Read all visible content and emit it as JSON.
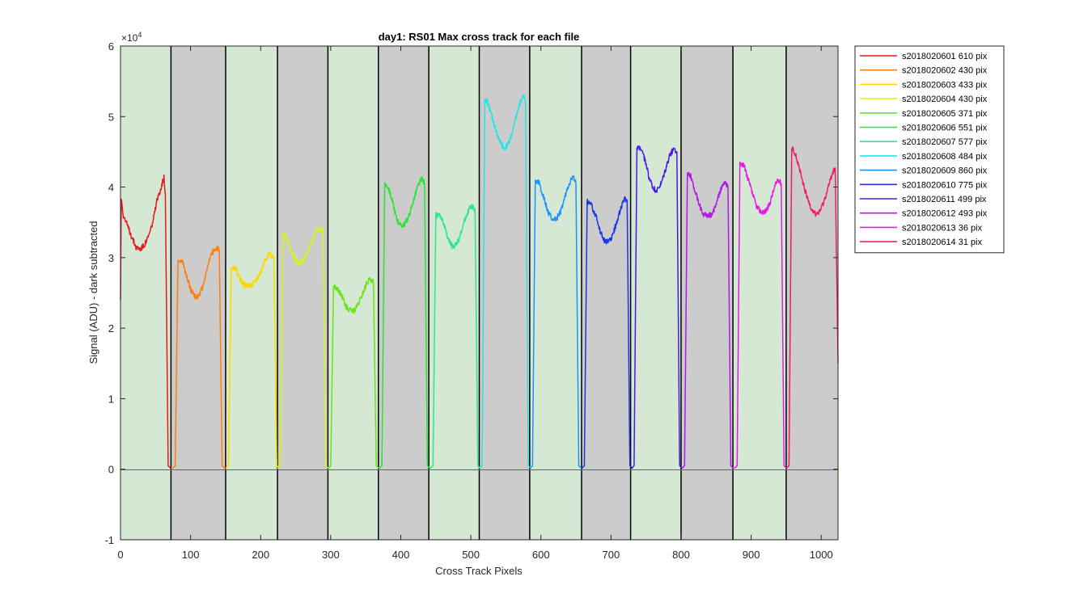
{
  "chart_data": {
    "type": "line",
    "title": "day1: RS01  Max cross track for each file",
    "xlabel": "Cross Track Pixels",
    "ylabel": "Signal (ADU) - dark subtracted",
    "exponent_label": "×10",
    "exponent_power": "4",
    "xlim": [
      0,
      1024
    ],
    "ylim": [
      -1,
      6
    ],
    "ylim_units": "x 10^4 ADU",
    "xticks": [
      "0",
      "100",
      "200",
      "300",
      "400",
      "500",
      "600",
      "700",
      "800",
      "900",
      "1000"
    ],
    "yticks": [
      "-1",
      "0",
      "1",
      "2",
      "3",
      "4",
      "5",
      "6"
    ],
    "legend_position": "outside-top-right",
    "background_bands": [
      {
        "start": 0,
        "end": 72,
        "shade": "green"
      },
      {
        "start": 72,
        "end": 150,
        "shade": "gray"
      },
      {
        "start": 150,
        "end": 224,
        "shade": "green"
      },
      {
        "start": 224,
        "end": 296,
        "shade": "gray"
      },
      {
        "start": 296,
        "end": 368,
        "shade": "green"
      },
      {
        "start": 368,
        "end": 440,
        "shade": "gray"
      },
      {
        "start": 440,
        "end": 512,
        "shade": "green"
      },
      {
        "start": 512,
        "end": 584,
        "shade": "gray"
      },
      {
        "start": 584,
        "end": 658,
        "shade": "green"
      },
      {
        "start": 658,
        "end": 728,
        "shade": "gray"
      },
      {
        "start": 728,
        "end": 800,
        "shade": "green"
      },
      {
        "start": 800,
        "end": 874,
        "shade": "gray"
      },
      {
        "start": 874,
        "end": 950,
        "shade": "green"
      },
      {
        "start": 950,
        "end": 1024,
        "shade": "gray"
      }
    ],
    "band_colors": {
      "green": "#d5e8d4",
      "gray": "#cccccc"
    },
    "series": [
      {
        "name": "s2018020601 610 pix",
        "color": "#e41a1c",
        "start": 0,
        "end": 64,
        "points": [
          [
            0,
            2.4
          ],
          [
            1,
            3.85
          ],
          [
            4,
            3.6
          ],
          [
            10,
            3.45
          ],
          [
            16,
            3.3
          ],
          [
            22,
            3.15
          ],
          [
            28,
            3.12
          ],
          [
            34,
            3.18
          ],
          [
            40,
            3.3
          ],
          [
            46,
            3.5
          ],
          [
            52,
            3.8
          ],
          [
            58,
            4.0
          ],
          [
            62,
            4.15
          ],
          [
            64,
            3.9
          ]
        ]
      },
      {
        "name": "s2018020602 430 pix",
        "color": "#ff7f0e",
        "start": 82,
        "end": 141,
        "points": [
          [
            82,
            2.95
          ],
          [
            88,
            2.95
          ],
          [
            94,
            2.75
          ],
          [
            100,
            2.55
          ],
          [
            106,
            2.45
          ],
          [
            112,
            2.45
          ],
          [
            118,
            2.6
          ],
          [
            124,
            2.85
          ],
          [
            130,
            3.05
          ],
          [
            136,
            3.15
          ],
          [
            141,
            3.1
          ]
        ]
      },
      {
        "name": "s2018020603 433 pix",
        "color": "#ffd700",
        "start": 158,
        "end": 219,
        "points": [
          [
            158,
            2.85
          ],
          [
            164,
            2.85
          ],
          [
            170,
            2.7
          ],
          [
            176,
            2.62
          ],
          [
            182,
            2.6
          ],
          [
            188,
            2.62
          ],
          [
            194,
            2.7
          ],
          [
            200,
            2.8
          ],
          [
            206,
            2.95
          ],
          [
            212,
            3.05
          ],
          [
            219,
            3.0
          ]
        ]
      },
      {
        "name": "s2018020604 430 pix",
        "color": "#d4f51c",
        "start": 232,
        "end": 289,
        "points": [
          [
            232,
            3.35
          ],
          [
            236,
            3.3
          ],
          [
            242,
            3.15
          ],
          [
            248,
            3.0
          ],
          [
            254,
            2.92
          ],
          [
            260,
            2.95
          ],
          [
            266,
            3.05
          ],
          [
            272,
            3.2
          ],
          [
            278,
            3.35
          ],
          [
            284,
            3.42
          ],
          [
            289,
            3.4
          ]
        ]
      },
      {
        "name": "s2018020605 371 pix",
        "color": "#66e61a",
        "start": 304,
        "end": 361,
        "points": [
          [
            304,
            2.6
          ],
          [
            310,
            2.55
          ],
          [
            316,
            2.45
          ],
          [
            322,
            2.3
          ],
          [
            328,
            2.25
          ],
          [
            334,
            2.25
          ],
          [
            340,
            2.35
          ],
          [
            346,
            2.5
          ],
          [
            352,
            2.65
          ],
          [
            357,
            2.7
          ],
          [
            361,
            2.65
          ]
        ]
      },
      {
        "name": "s2018020606 551 pix",
        "color": "#28e632",
        "start": 377,
        "end": 434,
        "points": [
          [
            377,
            4.05
          ],
          [
            382,
            4.0
          ],
          [
            388,
            3.8
          ],
          [
            394,
            3.55
          ],
          [
            400,
            3.45
          ],
          [
            406,
            3.48
          ],
          [
            412,
            3.6
          ],
          [
            418,
            3.8
          ],
          [
            424,
            4.0
          ],
          [
            430,
            4.12
          ],
          [
            434,
            4.05
          ]
        ]
      },
      {
        "name": "s2018020607 577 pix",
        "color": "#2ee68c",
        "start": 450,
        "end": 506,
        "points": [
          [
            450,
            3.6
          ],
          [
            456,
            3.6
          ],
          [
            462,
            3.45
          ],
          [
            468,
            3.25
          ],
          [
            474,
            3.15
          ],
          [
            480,
            3.2
          ],
          [
            486,
            3.35
          ],
          [
            492,
            3.55
          ],
          [
            498,
            3.7
          ],
          [
            503,
            3.72
          ],
          [
            506,
            3.65
          ]
        ]
      },
      {
        "name": "s2018020608 484 pix",
        "color": "#22e6e6",
        "start": 520,
        "end": 578,
        "points": [
          [
            520,
            5.25
          ],
          [
            524,
            5.2
          ],
          [
            530,
            5.0
          ],
          [
            536,
            4.8
          ],
          [
            542,
            4.62
          ],
          [
            548,
            4.55
          ],
          [
            554,
            4.62
          ],
          [
            560,
            4.8
          ],
          [
            566,
            5.05
          ],
          [
            572,
            5.25
          ],
          [
            576,
            5.3
          ],
          [
            578,
            5.2
          ]
        ]
      },
      {
        "name": "s2018020609 860 pix",
        "color": "#1e90ff",
        "start": 592,
        "end": 650,
        "points": [
          [
            592,
            4.1
          ],
          [
            598,
            4.05
          ],
          [
            604,
            3.85
          ],
          [
            610,
            3.65
          ],
          [
            616,
            3.55
          ],
          [
            622,
            3.55
          ],
          [
            628,
            3.65
          ],
          [
            634,
            3.85
          ],
          [
            640,
            4.05
          ],
          [
            646,
            4.15
          ],
          [
            650,
            4.05
          ]
        ]
      },
      {
        "name": "s2018020610 775 pix",
        "color": "#1a35e6",
        "start": 666,
        "end": 723,
        "points": [
          [
            666,
            3.8
          ],
          [
            672,
            3.75
          ],
          [
            678,
            3.6
          ],
          [
            684,
            3.4
          ],
          [
            690,
            3.25
          ],
          [
            696,
            3.22
          ],
          [
            702,
            3.3
          ],
          [
            708,
            3.5
          ],
          [
            714,
            3.7
          ],
          [
            720,
            3.85
          ],
          [
            723,
            3.8
          ]
        ]
      },
      {
        "name": "s2018020611 499 pix",
        "color": "#4b1ae6",
        "start": 737,
        "end": 794,
        "points": [
          [
            737,
            4.55
          ],
          [
            742,
            4.55
          ],
          [
            748,
            4.4
          ],
          [
            754,
            4.15
          ],
          [
            760,
            3.98
          ],
          [
            766,
            3.95
          ],
          [
            772,
            4.05
          ],
          [
            778,
            4.25
          ],
          [
            784,
            4.45
          ],
          [
            790,
            4.55
          ],
          [
            794,
            4.5
          ]
        ]
      },
      {
        "name": "s2018020612 493 pix",
        "color": "#b41ae6",
        "start": 809,
        "end": 867,
        "points": [
          [
            809,
            4.2
          ],
          [
            814,
            4.15
          ],
          [
            820,
            3.95
          ],
          [
            826,
            3.75
          ],
          [
            832,
            3.62
          ],
          [
            838,
            3.58
          ],
          [
            844,
            3.62
          ],
          [
            850,
            3.75
          ],
          [
            856,
            3.95
          ],
          [
            862,
            4.08
          ],
          [
            867,
            4.0
          ]
        ]
      },
      {
        "name": "s2018020613 36 pix",
        "color": "#e61ae6",
        "start": 884,
        "end": 943,
        "points": [
          [
            884,
            4.35
          ],
          [
            890,
            4.3
          ],
          [
            896,
            4.1
          ],
          [
            902,
            3.9
          ],
          [
            908,
            3.72
          ],
          [
            914,
            3.65
          ],
          [
            920,
            3.65
          ],
          [
            926,
            3.75
          ],
          [
            932,
            3.95
          ],
          [
            938,
            4.12
          ],
          [
            943,
            4.05
          ]
        ]
      },
      {
        "name": "s2018020614 31 pix",
        "color": "#f01a6e",
        "start": 958,
        "end": 1024,
        "points": [
          [
            958,
            4.55
          ],
          [
            962,
            4.5
          ],
          [
            968,
            4.3
          ],
          [
            974,
            4.05
          ],
          [
            980,
            3.85
          ],
          [
            986,
            3.7
          ],
          [
            992,
            3.62
          ],
          [
            998,
            3.65
          ],
          [
            1004,
            3.8
          ],
          [
            1010,
            4.0
          ],
          [
            1016,
            4.2
          ],
          [
            1020,
            4.25
          ],
          [
            1024,
            1.5
          ]
        ]
      }
    ]
  }
}
